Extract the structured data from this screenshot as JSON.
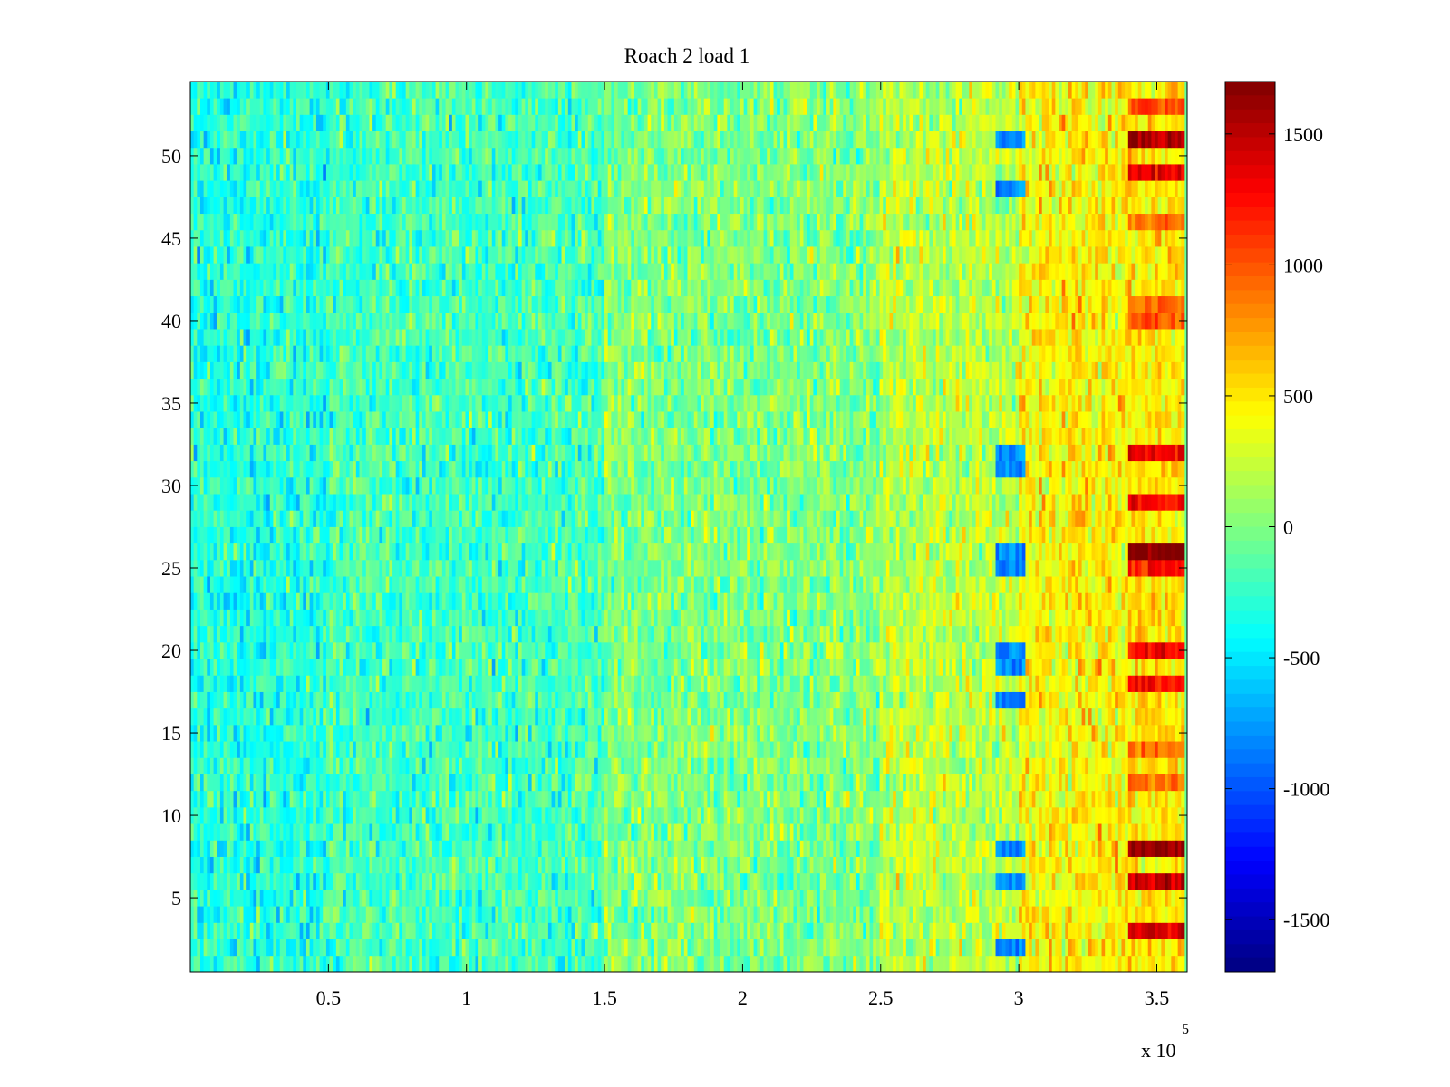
{
  "chart_data": {
    "type": "heatmap",
    "title": "Roach 2 load 1",
    "colormap": "jet",
    "xlim": [
      0,
      361000
    ],
    "ylim": [
      0.5,
      54.5
    ],
    "x_ticks": [
      50000,
      100000,
      150000,
      200000,
      250000,
      300000,
      350000
    ],
    "x_tick_labels": [
      "0.5",
      "1",
      "1.5",
      "2",
      "2.5",
      "3",
      "3.5"
    ],
    "x_multiplier": "x 10",
    "x_multiplier_exponent": "5",
    "y_ticks": [
      5,
      10,
      15,
      20,
      25,
      30,
      35,
      40,
      45,
      50
    ],
    "y_tick_labels": [
      "5",
      "10",
      "15",
      "20",
      "25",
      "30",
      "35",
      "40",
      "45",
      "50"
    ],
    "rows": 54,
    "row_data_x_end": 360000,
    "colorbar": {
      "range": [
        -1700,
        1700
      ],
      "ticks": [
        -1500,
        -1000,
        -500,
        0,
        500,
        1000,
        1500
      ],
      "tick_labels": [
        "-1500",
        "-1000",
        "-500",
        "0",
        "500",
        "1000",
        "1500"
      ]
    },
    "trend_segments": [
      {
        "x_start": 0,
        "x_end": 50000,
        "mean": -300
      },
      {
        "x_start": 50000,
        "x_end": 150000,
        "mean": -200
      },
      {
        "x_start": 150000,
        "x_end": 250000,
        "mean": 0
      },
      {
        "x_start": 250000,
        "x_end": 300000,
        "mean": 200
      },
      {
        "x_start": 300000,
        "x_end": 340000,
        "mean": 450
      },
      {
        "x_start": 340000,
        "x_end": 360000,
        "mean": 1000
      }
    ],
    "cold_spots_x_range": [
      292000,
      302000
    ],
    "cold_spot_rows": [
      2,
      6,
      8,
      17,
      19,
      20,
      25,
      26,
      31,
      32,
      48,
      51
    ],
    "hot_band_x_range": [
      340000,
      360000
    ],
    "hot_rows": [
      {
        "row": 3,
        "value": 1450
      },
      {
        "row": 6,
        "value": 1500
      },
      {
        "row": 8,
        "value": 1650
      },
      {
        "row": 12,
        "value": 900
      },
      {
        "row": 14,
        "value": 900
      },
      {
        "row": 18,
        "value": 1250
      },
      {
        "row": 20,
        "value": 1300
      },
      {
        "row": 25,
        "value": 1200
      },
      {
        "row": 26,
        "value": 1700
      },
      {
        "row": 29,
        "value": 1250
      },
      {
        "row": 32,
        "value": 1300
      },
      {
        "row": 40,
        "value": 1000
      },
      {
        "row": 41,
        "value": 900
      },
      {
        "row": 46,
        "value": 900
      },
      {
        "row": 49,
        "value": 1300
      },
      {
        "row": 51,
        "value": 1550
      },
      {
        "row": 53,
        "value": 1000
      }
    ]
  }
}
